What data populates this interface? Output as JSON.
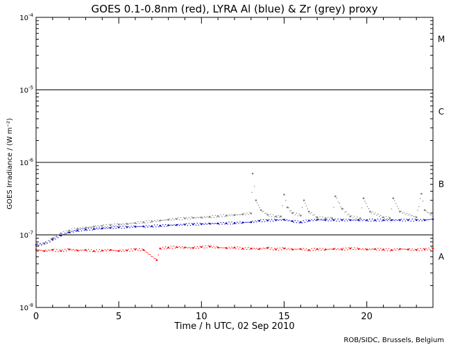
{
  "chart_data": {
    "type": "scatter",
    "title": "GOES 0.1-0.8nm (red), LYRA Al (blue) & Zr (grey) proxy",
    "xlabel": "Time / h UTC, 02 Sep 2010",
    "ylabel": "GOES Irradiance / (W m⁻²)",
    "xlim": [
      0,
      24
    ],
    "ylim": [
      1e-08,
      0.0001
    ],
    "yscale": "log",
    "x_ticks": [
      {
        "value": 0,
        "label": "0"
      },
      {
        "value": 5,
        "label": "5"
      },
      {
        "value": 10,
        "label": "10"
      },
      {
        "value": 15,
        "label": "15"
      },
      {
        "value": 20,
        "label": "20"
      }
    ],
    "y_ticks": [
      {
        "value": 0.0001,
        "base": "10",
        "exp": "-4"
      },
      {
        "value": 1e-05,
        "base": "10",
        "exp": "-5"
      },
      {
        "value": 1e-06,
        "base": "10",
        "exp": "-6"
      },
      {
        "value": 1e-07,
        "base": "10",
        "exp": "-7"
      },
      {
        "value": 1e-08,
        "base": "10",
        "exp": "-8"
      }
    ],
    "class_lines": [
      1e-05,
      1e-06,
      1e-07
    ],
    "flare_classes": [
      {
        "label": "M",
        "value": 5e-05
      },
      {
        "label": "C",
        "value": 5e-06
      },
      {
        "label": "B",
        "value": 5e-07
      },
      {
        "label": "A",
        "value": 5e-08
      }
    ],
    "grid": false,
    "series": [
      {
        "color": "#ff0000",
        "x": [
          0,
          0.5,
          1,
          1.5,
          2,
          2.5,
          3,
          3.5,
          4,
          4.5,
          5,
          5.5,
          6,
          6.5,
          7.3,
          7.5,
          8,
          8.5,
          9,
          9.5,
          10,
          10.5,
          11,
          11.5,
          12,
          12.5,
          13,
          13.5,
          14,
          14.5,
          15,
          15.5,
          16,
          16.5,
          17,
          17.5,
          18,
          18.5,
          19,
          19.5,
          20,
          20.5,
          21,
          21.5,
          22,
          22.5,
          23,
          23.5,
          24
        ],
        "y": [
          6.3e-08,
          6e-08,
          6.2e-08,
          6e-08,
          6.3e-08,
          6.1e-08,
          6.2e-08,
          6e-08,
          6.1e-08,
          6.2e-08,
          6e-08,
          6.1e-08,
          6.3e-08,
          6.2e-08,
          4.5e-08,
          6.5e-08,
          6.7e-08,
          6.8e-08,
          6.7e-08,
          6.6e-08,
          6.8e-08,
          6.9e-08,
          6.7e-08,
          6.6e-08,
          6.7e-08,
          6.5e-08,
          6.5e-08,
          6.4e-08,
          6.6e-08,
          6.3e-08,
          6.5e-08,
          6.3e-08,
          6.4e-08,
          6.2e-08,
          6.4e-08,
          6.3e-08,
          6.4e-08,
          6.3e-08,
          6.5e-08,
          6.4e-08,
          6.3e-08,
          6.4e-08,
          6.3e-08,
          6.2e-08,
          6.4e-08,
          6.3e-08,
          6.2e-08,
          6.3e-08,
          6.5e-08
        ]
      },
      {
        "color": "#0000cc",
        "x": [
          0,
          0.5,
          1,
          1.5,
          2,
          2.5,
          3,
          3.5,
          4,
          4.5,
          5,
          5.5,
          6,
          6.5,
          7,
          7.5,
          8,
          8.5,
          9,
          9.5,
          10,
          10.5,
          11,
          11.5,
          12,
          12.5,
          13,
          13.5,
          14,
          14.5,
          15,
          15.5,
          16,
          16.5,
          17,
          17.5,
          18,
          18.5,
          19,
          19.5,
          20,
          20.5,
          21,
          21.5,
          22,
          22.5,
          23,
          23.5,
          24
        ],
        "y": [
          7.3e-08,
          7.6e-08,
          8.6e-08,
          9.8e-08,
          1.08e-07,
          1.15e-07,
          1.19e-07,
          1.21e-07,
          1.23e-07,
          1.25e-07,
          1.27e-07,
          1.28e-07,
          1.3e-07,
          1.31e-07,
          1.32e-07,
          1.34e-07,
          1.36e-07,
          1.37e-07,
          1.39e-07,
          1.4e-07,
          1.41e-07,
          1.43e-07,
          1.44e-07,
          1.45e-07,
          1.46e-07,
          1.48e-07,
          1.5e-07,
          1.56e-07,
          1.58e-07,
          1.6e-07,
          1.62e-07,
          1.55e-07,
          1.5e-07,
          1.58e-07,
          1.62e-07,
          1.6e-07,
          1.6e-07,
          1.6e-07,
          1.6e-07,
          1.6e-07,
          1.6e-07,
          1.6e-07,
          1.6e-07,
          1.6e-07,
          1.6e-07,
          1.6e-07,
          1.6e-07,
          1.6e-07,
          1.65e-07
        ]
      },
      {
        "color": "#808080",
        "x": [
          0,
          0.5,
          1,
          1.5,
          2,
          2.5,
          3,
          3.5,
          4,
          4.5,
          5,
          5.5,
          6,
          6.5,
          7,
          7.5,
          8,
          8.5,
          9,
          9.5,
          10,
          10.5,
          11,
          11.5,
          12,
          12.5,
          13,
          13.1,
          13.3,
          13.6,
          14,
          14.5,
          14.8,
          15,
          15.2,
          15.5,
          16,
          16.2,
          16.5,
          17,
          17.5,
          17.9,
          18.1,
          18.5,
          19,
          19.6,
          19.8,
          20.2,
          21,
          21.4,
          21.6,
          22,
          23,
          23.3,
          23.5,
          24
        ],
        "y": [
          7e-08,
          7.5e-08,
          9e-08,
          1.05e-07,
          1.15e-07,
          1.22e-07,
          1.26e-07,
          1.3e-07,
          1.33e-07,
          1.36e-07,
          1.39e-07,
          1.42e-07,
          1.46e-07,
          1.5e-07,
          1.54e-07,
          1.58e-07,
          1.62e-07,
          1.66e-07,
          1.69e-07,
          1.72e-07,
          1.74e-07,
          1.78e-07,
          1.82e-07,
          1.85e-07,
          1.88e-07,
          1.92e-07,
          1.98e-07,
          7e-07,
          3e-07,
          2.2e-07,
          1.9e-07,
          1.8e-07,
          1.8e-07,
          3.6e-07,
          2.4e-07,
          2e-07,
          1.85e-07,
          3e-07,
          2.1e-07,
          1.75e-07,
          1.7e-07,
          1.7e-07,
          3.4e-07,
          2.3e-07,
          1.8e-07,
          1.7e-07,
          3.2e-07,
          2.1e-07,
          1.75e-07,
          1.7e-07,
          3.2e-07,
          2.1e-07,
          1.75e-07,
          3.7e-07,
          2.2e-07,
          1.8e-07
        ]
      }
    ]
  },
  "footer": {
    "credit": "ROB/SIDC, Brussels, Belgium"
  }
}
